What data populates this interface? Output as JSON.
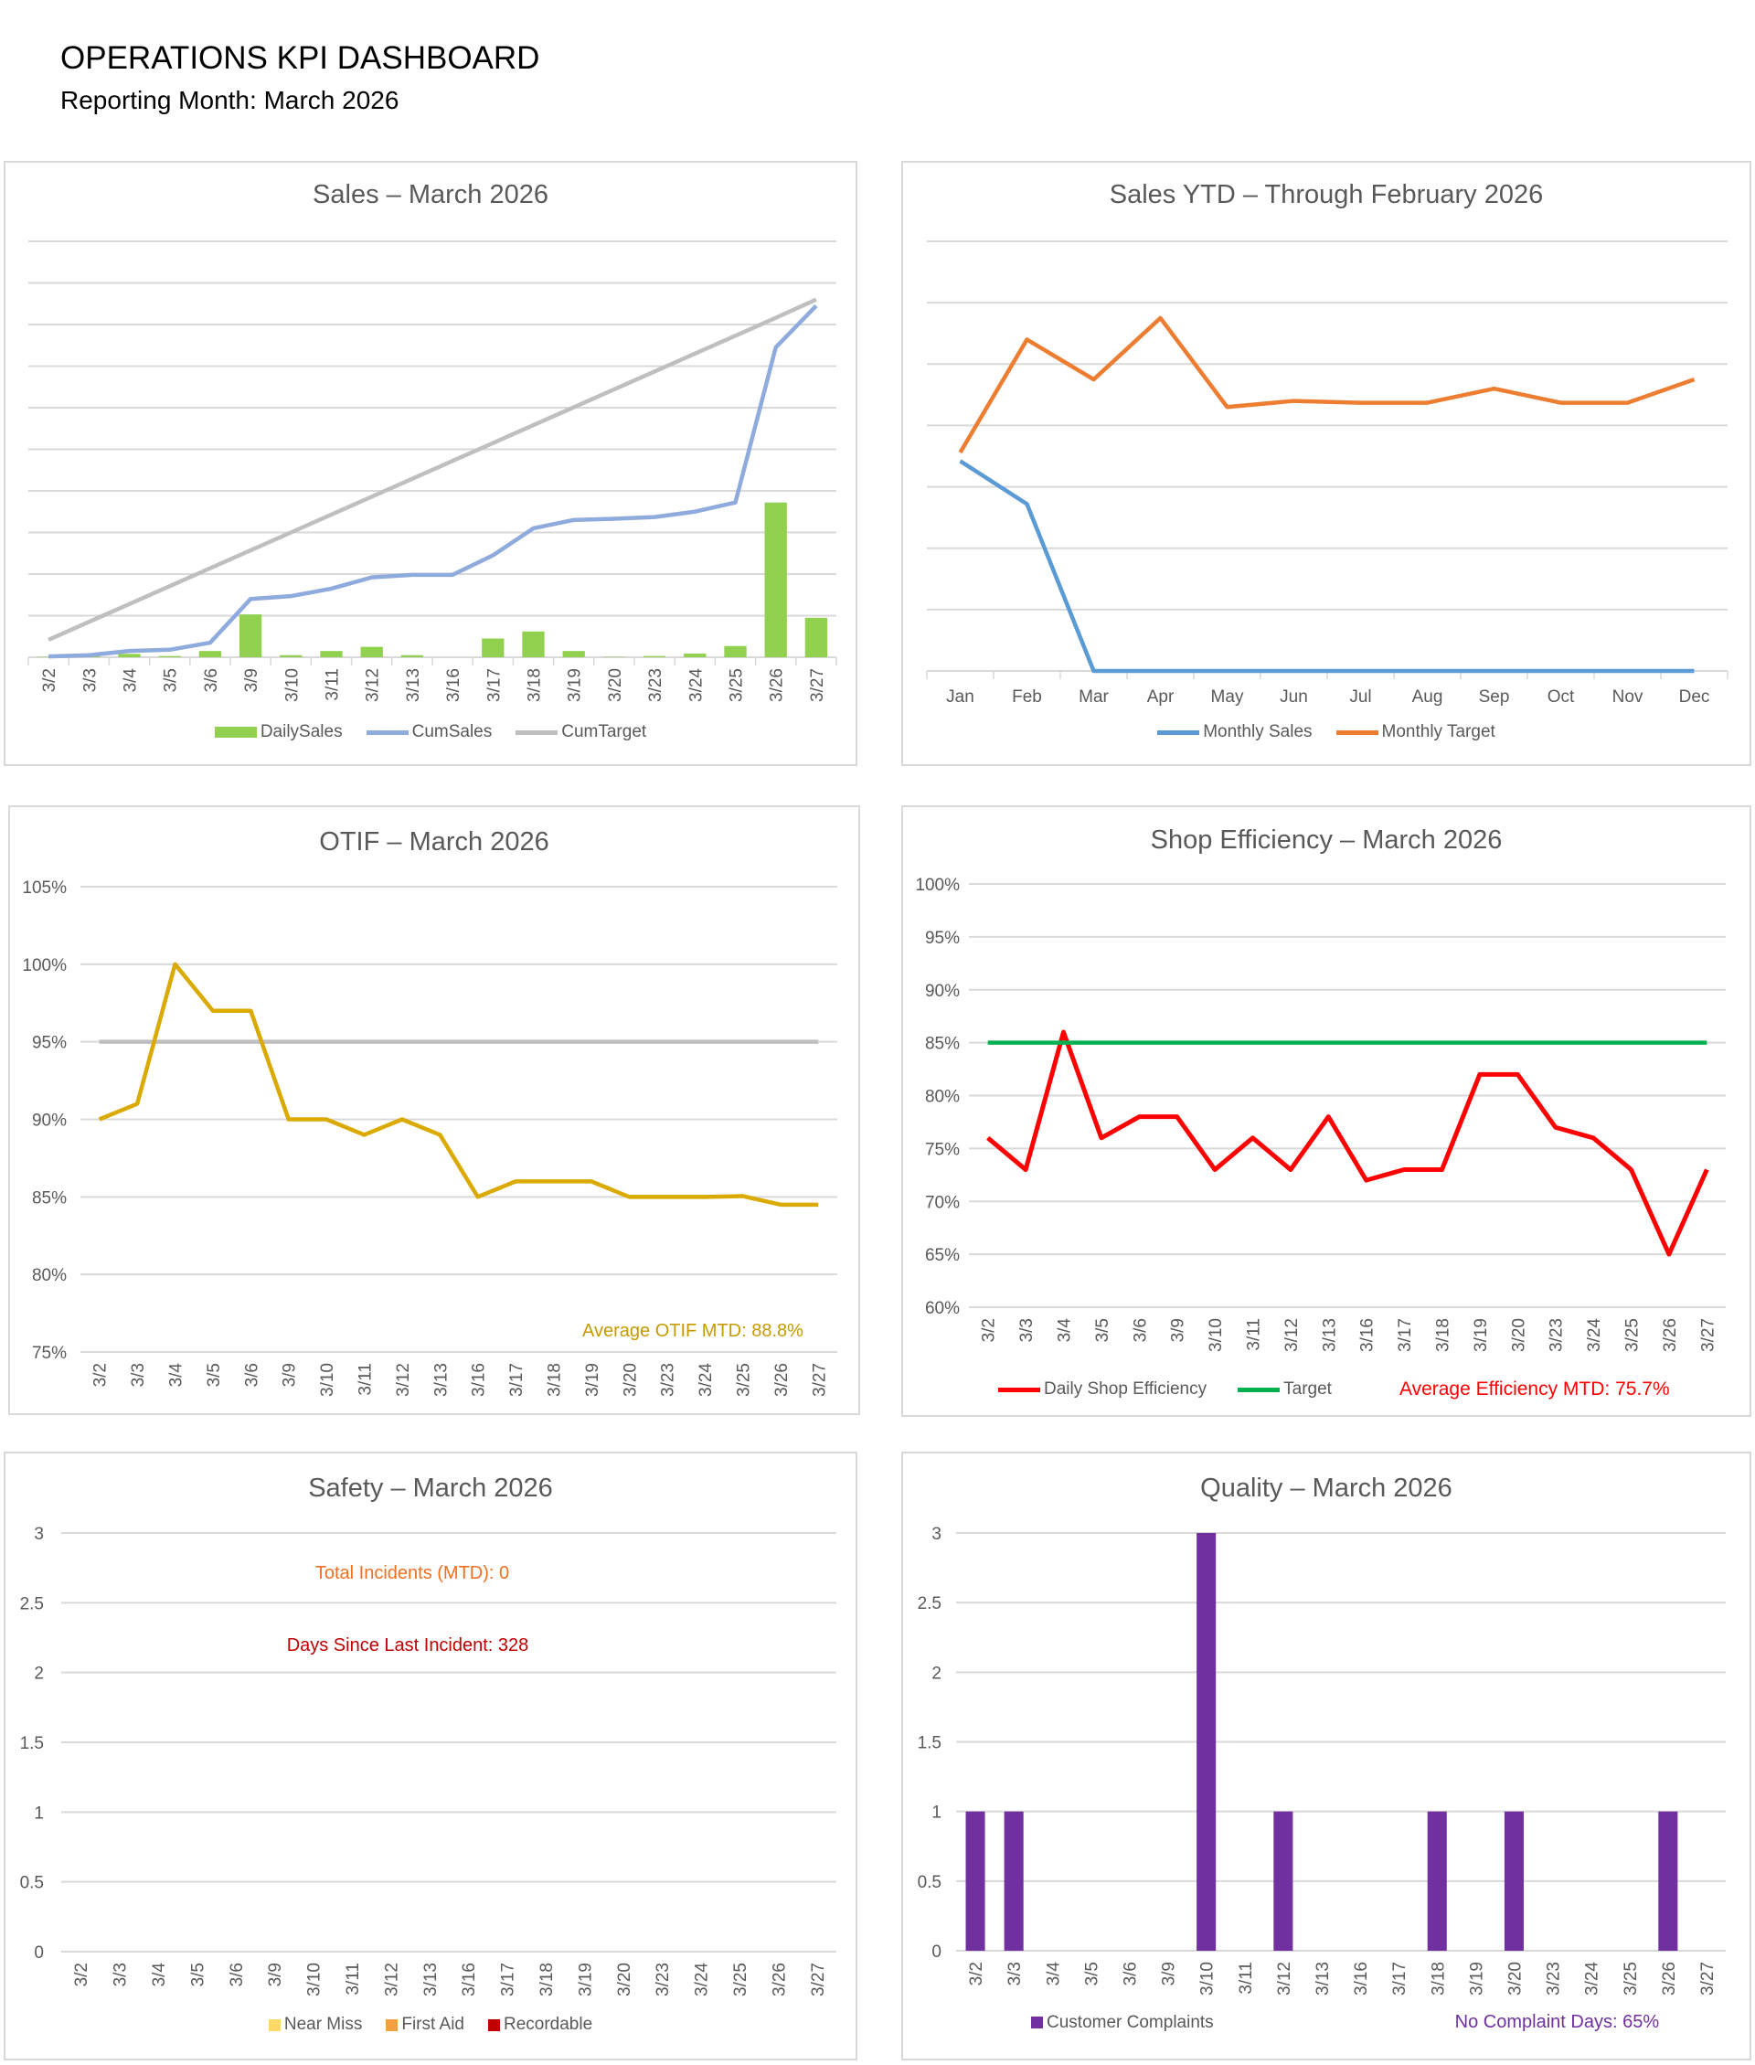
{
  "header": {
    "title": "OPERATIONS KPI DASHBOARD",
    "subtitle": "Reporting Month: March 2026"
  },
  "colors": {
    "daily_sales": "#92d050",
    "cum_sales": "#8faadc",
    "cum_target": "#bfbfbf",
    "monthly_sales": "#5b9bd5",
    "monthly_target": "#ed7d31",
    "otif": "#dbaa00",
    "otif_target": "#bfbfbf",
    "efficiency": "#ff0000",
    "eff_target": "#00b050",
    "near_miss": "#ffd966",
    "first_aid": "#f4a040",
    "recordable": "#c00000",
    "complaints": "#7030a0",
    "grid": "#d9d9d9",
    "text": "#595959"
  },
  "chart_data": [
    {
      "id": "sales",
      "type": "bar+line",
      "title": "Sales – March 2026",
      "categories": [
        "3/2",
        "3/3",
        "3/4",
        "3/5",
        "3/6",
        "3/9",
        "3/10",
        "3/11",
        "3/12",
        "3/13",
        "3/16",
        "3/17",
        "3/18",
        "3/19",
        "3/20",
        "3/23",
        "3/24",
        "3/25",
        "3/26",
        "3/27"
      ],
      "y_axis_labels_shown": false,
      "ylim": [
        0,
        10
      ],
      "grid": true,
      "legend": "bottom",
      "series": [
        {
          "name": "DailySales",
          "kind": "bar",
          "values": [
            0.01,
            0.02,
            0.08,
            0.03,
            0.15,
            1.03,
            0.05,
            0.15,
            0.25,
            0.05,
            0,
            0.45,
            0.62,
            0.15,
            0.01,
            0.03,
            0.09,
            0.27,
            3.72,
            0.95
          ]
        },
        {
          "name": "CumSales",
          "kind": "line",
          "values": [
            0.02,
            0.05,
            0.15,
            0.18,
            0.35,
            1.4,
            1.47,
            1.65,
            1.92,
            1.98,
            1.98,
            2.45,
            3.1,
            3.3,
            3.33,
            3.37,
            3.5,
            3.72,
            7.45,
            8.45
          ]
        },
        {
          "name": "CumTarget",
          "kind": "line",
          "values": [
            0.42,
            0.85,
            1.28,
            1.71,
            2.14,
            2.57,
            3.0,
            3.43,
            3.86,
            4.29,
            4.72,
            5.15,
            5.58,
            6.01,
            6.44,
            6.87,
            7.3,
            7.73,
            8.16,
            8.6
          ]
        }
      ]
    },
    {
      "id": "ytd",
      "type": "line",
      "title": "Sales YTD – Through February 2026",
      "categories": [
        "Jan",
        "Feb",
        "Mar",
        "Apr",
        "May",
        "Jun",
        "Jul",
        "Aug",
        "Sep",
        "Oct",
        "Nov",
        "Dec"
      ],
      "y_axis_labels_shown": false,
      "ylim": [
        0,
        7
      ],
      "grid": true,
      "legend": "bottom",
      "series": [
        {
          "name": "Monthly Sales",
          "kind": "line",
          "values": [
            3.42,
            2.72,
            0,
            0,
            0,
            0,
            0,
            0,
            0,
            0,
            0,
            0
          ]
        },
        {
          "name": "Monthly Target",
          "kind": "line",
          "values": [
            3.56,
            5.4,
            4.75,
            5.75,
            4.3,
            4.4,
            4.37,
            4.37,
            4.6,
            4.37,
            4.37,
            4.75
          ]
        }
      ]
    },
    {
      "id": "otif",
      "type": "line",
      "title": "OTIF –  March 2026",
      "categories": [
        "3/2",
        "3/3",
        "3/4",
        "3/5",
        "3/6",
        "3/9",
        "3/10",
        "3/11",
        "3/12",
        "3/13",
        "3/16",
        "3/17",
        "3/18",
        "3/19",
        "3/20",
        "3/23",
        "3/24",
        "3/25",
        "3/26",
        "3/27"
      ],
      "ylim": [
        75,
        105
      ],
      "yticks": [
        75,
        80,
        85,
        90,
        95,
        100,
        105
      ],
      "ytick_labels": [
        "75%",
        "80%",
        "85%",
        "90%",
        "95%",
        "100%",
        "105%"
      ],
      "grid": true,
      "legend": "none",
      "annotation": "Average OTIF MTD: 88.8%",
      "series": [
        {
          "kind": "line",
          "role": "target",
          "values": [
            95,
            95,
            95,
            95,
            95,
            95,
            95,
            95,
            95,
            95,
            95,
            95,
            95,
            95,
            95,
            95,
            95,
            95,
            95,
            95
          ]
        },
        {
          "kind": "line",
          "values": [
            90,
            91,
            100,
            97,
            97,
            90,
            90,
            89,
            90,
            89,
            85,
            86,
            86,
            86,
            85,
            85,
            85,
            85.05,
            84.5,
            84.5
          ]
        }
      ]
    },
    {
      "id": "efficiency",
      "type": "line",
      "title": "Shop Efficiency –  March 2026",
      "categories": [
        "3/2",
        "3/3",
        "3/4",
        "3/5",
        "3/6",
        "3/9",
        "3/10",
        "3/11",
        "3/12",
        "3/13",
        "3/16",
        "3/17",
        "3/18",
        "3/19",
        "3/20",
        "3/23",
        "3/24",
        "3/25",
        "3/26",
        "3/27"
      ],
      "ylim": [
        60,
        100
      ],
      "yticks": [
        60,
        65,
        70,
        75,
        80,
        85,
        90,
        95,
        100
      ],
      "ytick_labels": [
        "60%",
        "65%",
        "70%",
        "75%",
        "80%",
        "85%",
        "90%",
        "95%",
        "100%"
      ],
      "grid": true,
      "legend": "bottom",
      "annotation": "Average Efficiency MTD: 75.7%",
      "series": [
        {
          "name": "Daily Shop Efficiency",
          "kind": "line",
          "values": [
            76,
            73,
            86,
            76,
            78,
            78,
            73,
            76,
            73,
            78,
            72,
            73,
            73,
            82,
            82,
            77,
            76,
            73,
            65,
            73
          ]
        },
        {
          "name": "Target",
          "kind": "line",
          "values": [
            85,
            85,
            85,
            85,
            85,
            85,
            85,
            85,
            85,
            85,
            85,
            85,
            85,
            85,
            85,
            85,
            85,
            85,
            85,
            85
          ]
        }
      ]
    },
    {
      "id": "safety",
      "type": "bar",
      "title": "Safety –  March 2026",
      "categories": [
        "3/2",
        "3/3",
        "3/4",
        "3/5",
        "3/6",
        "3/9",
        "3/10",
        "3/11",
        "3/12",
        "3/13",
        "3/16",
        "3/17",
        "3/18",
        "3/19",
        "3/20",
        "3/23",
        "3/24",
        "3/25",
        "3/26",
        "3/27"
      ],
      "ylim": [
        0,
        3
      ],
      "yticks": [
        0,
        0.5,
        1,
        1.5,
        2,
        2.5,
        3
      ],
      "ytick_labels": [
        "0",
        "0.5",
        "1",
        "1.5",
        "2",
        "2.5",
        "3"
      ],
      "grid": true,
      "legend": "bottom",
      "annotations": [
        "Total Incidents (MTD): 0",
        "Days Since Last Incident: 328"
      ],
      "series": [
        {
          "name": "Near Miss",
          "kind": "bar",
          "values": [
            0,
            0,
            0,
            0,
            0,
            0,
            0,
            0,
            0,
            0,
            0,
            0,
            0,
            0,
            0,
            0,
            0,
            0,
            0,
            0
          ]
        },
        {
          "name": "First Aid",
          "kind": "bar",
          "values": [
            0,
            0,
            0,
            0,
            0,
            0,
            0,
            0,
            0,
            0,
            0,
            0,
            0,
            0,
            0,
            0,
            0,
            0,
            0,
            0
          ]
        },
        {
          "name": "Recordable",
          "kind": "bar",
          "values": [
            0,
            0,
            0,
            0,
            0,
            0,
            0,
            0,
            0,
            0,
            0,
            0,
            0,
            0,
            0,
            0,
            0,
            0,
            0,
            0
          ]
        }
      ]
    },
    {
      "id": "quality",
      "type": "bar",
      "title": "Quality –  March 2026",
      "categories": [
        "3/2",
        "3/3",
        "3/4",
        "3/5",
        "3/6",
        "3/9",
        "3/10",
        "3/11",
        "3/12",
        "3/13",
        "3/16",
        "3/17",
        "3/18",
        "3/19",
        "3/20",
        "3/23",
        "3/24",
        "3/25",
        "3/26",
        "3/27"
      ],
      "ylim": [
        0,
        3
      ],
      "yticks": [
        0,
        0.5,
        1,
        1.5,
        2,
        2.5,
        3
      ],
      "ytick_labels": [
        "0",
        "0.5",
        "1",
        "1.5",
        "2",
        "2.5",
        "3"
      ],
      "grid": true,
      "legend": "bottom",
      "annotation": "No Complaint Days: 65%",
      "series": [
        {
          "name": "Customer Complaints",
          "kind": "bar",
          "values": [
            1,
            1,
            0,
            0,
            0,
            0,
            3,
            0,
            1,
            0,
            0,
            0,
            1,
            0,
            1,
            0,
            0,
            0,
            1,
            0
          ]
        }
      ]
    }
  ]
}
